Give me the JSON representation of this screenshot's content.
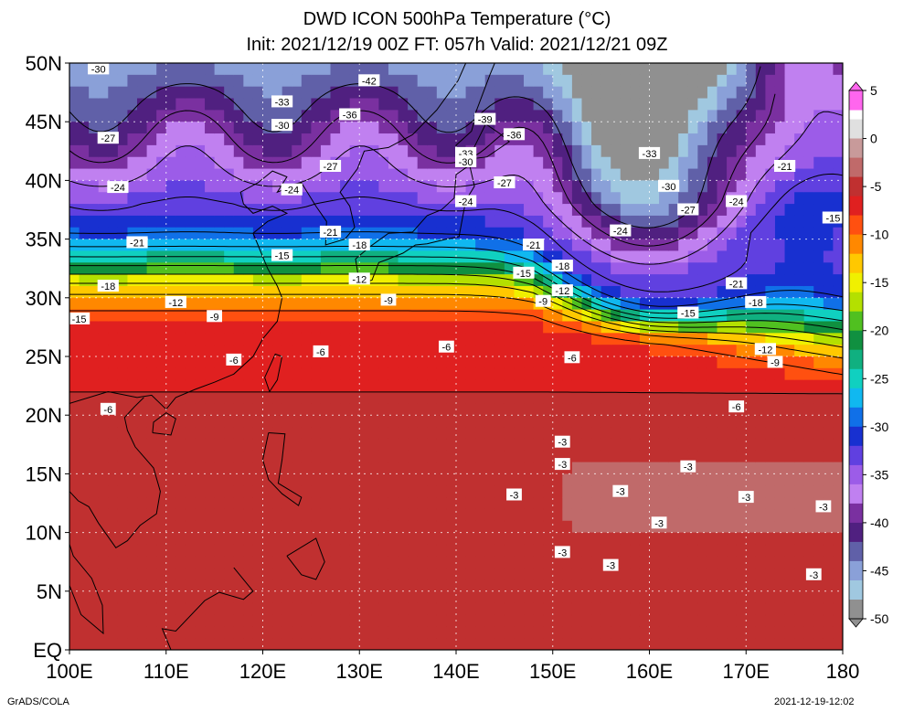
{
  "title": {
    "line1": "DWD ICON 500hPa Temperature (°C)",
    "line2": "Init: 2021/12/19 00Z  FT: 057h  Valid: 2021/12/21 09Z"
  },
  "axes": {
    "lat_labels": [
      "50N",
      "45N",
      "40N",
      "35N",
      "30N",
      "25N",
      "20N",
      "15N",
      "10N",
      "5N",
      "EQ"
    ],
    "lat_values": [
      50,
      45,
      40,
      35,
      30,
      25,
      20,
      15,
      10,
      5,
      0
    ],
    "lon_labels": [
      "100E",
      "110E",
      "120E",
      "130E",
      "140E",
      "150E",
      "160E",
      "170E",
      "180"
    ],
    "lon_values": [
      100,
      110,
      120,
      130,
      140,
      150,
      160,
      170,
      180
    ]
  },
  "colorbar": {
    "labels": [
      "5",
      "0",
      "-5",
      "-10",
      "-15",
      "-20",
      "-25",
      "-30",
      "-35",
      "-40",
      "-45",
      "-50"
    ],
    "label_values": [
      5,
      0,
      -5,
      -10,
      -15,
      -20,
      -25,
      -30,
      -35,
      -40,
      -45,
      -50
    ],
    "bins": [
      {
        "t": 4,
        "c": "#ff66ee"
      },
      {
        "t": 1,
        "c": "#e0e0e0"
      },
      {
        "t": -1,
        "c": "#c89a9a"
      },
      {
        "t": -3,
        "c": "#c06a6a"
      },
      {
        "t": -5,
        "c": "#c03030"
      },
      {
        "t": -7,
        "c": "#e02020"
      },
      {
        "t": -9,
        "c": "#ff5010"
      },
      {
        "t": -11,
        "c": "#ff8800"
      },
      {
        "t": -13,
        "c": "#ffc800"
      },
      {
        "t": -15,
        "c": "#f0f000"
      },
      {
        "t": -17,
        "c": "#b4e000"
      },
      {
        "t": -19,
        "c": "#50c020"
      },
      {
        "t": -21,
        "c": "#109040"
      },
      {
        "t": -23,
        "c": "#10b080"
      },
      {
        "t": -25,
        "c": "#10d0c0"
      },
      {
        "t": -27,
        "c": "#10b8f0"
      },
      {
        "t": -29,
        "c": "#1070e8"
      },
      {
        "t": -31,
        "c": "#1830d0"
      },
      {
        "t": -33,
        "c": "#6040e0"
      },
      {
        "t": -35,
        "c": "#9c5ce8"
      },
      {
        "t": -37,
        "c": "#c080f0"
      },
      {
        "t": -39,
        "c": "#7a30a0"
      },
      {
        "t": -41,
        "c": "#502080"
      },
      {
        "t": -43,
        "c": "#6060a8"
      },
      {
        "t": -45,
        "c": "#8aa0d8"
      },
      {
        "t": -47,
        "c": "#a0c8e0"
      },
      {
        "t": -49,
        "c": "#909090"
      }
    ]
  },
  "contour_labels": [
    {
      "text": "-42",
      "lon": 131,
      "lat": 48.5
    },
    {
      "text": "-30",
      "lon": 103,
      "lat": 49.5
    },
    {
      "text": "-33",
      "lon": 122,
      "lat": 46.7
    },
    {
      "text": "-36",
      "lon": 129,
      "lat": 45.6
    },
    {
      "text": "-30",
      "lon": 122,
      "lat": 44.7
    },
    {
      "text": "-39",
      "lon": 143,
      "lat": 45.2
    },
    {
      "text": "-36",
      "lon": 146,
      "lat": 43.9
    },
    {
      "text": "-27",
      "lon": 104,
      "lat": 43.6
    },
    {
      "text": "-33",
      "lon": 141,
      "lat": 42.3
    },
    {
      "text": "-30",
      "lon": 141,
      "lat": 41.6
    },
    {
      "text": "-33",
      "lon": 160,
      "lat": 42.3
    },
    {
      "text": "-27",
      "lon": 127,
      "lat": 41.2
    },
    {
      "text": "-21",
      "lon": 174,
      "lat": 41.2
    },
    {
      "text": "-24",
      "lon": 105,
      "lat": 39.4
    },
    {
      "text": "-24",
      "lon": 123,
      "lat": 39.2
    },
    {
      "text": "-27",
      "lon": 145,
      "lat": 39.8
    },
    {
      "text": "-30",
      "lon": 162,
      "lat": 39.5
    },
    {
      "text": "-24",
      "lon": 169,
      "lat": 38.2
    },
    {
      "text": "-24",
      "lon": 141,
      "lat": 38.2
    },
    {
      "text": "-27",
      "lon": 164,
      "lat": 37.5
    },
    {
      "text": "-15",
      "lon": 179,
      "lat": 36.8
    },
    {
      "text": "-21",
      "lon": 127,
      "lat": 35.6
    },
    {
      "text": "-18",
      "lon": 130,
      "lat": 34.5
    },
    {
      "text": "-21",
      "lon": 107,
      "lat": 34.7
    },
    {
      "text": "-21",
      "lon": 148,
      "lat": 34.5
    },
    {
      "text": "-24",
      "lon": 157,
      "lat": 35.7
    },
    {
      "text": "-15",
      "lon": 122,
      "lat": 33.6
    },
    {
      "text": "-18",
      "lon": 151,
      "lat": 32.7
    },
    {
      "text": "-15",
      "lon": 147,
      "lat": 32.1
    },
    {
      "text": "-12",
      "lon": 130,
      "lat": 31.6
    },
    {
      "text": "-18",
      "lon": 104,
      "lat": 31.0
    },
    {
      "text": "-21",
      "lon": 169,
      "lat": 31.2
    },
    {
      "text": "-12",
      "lon": 151,
      "lat": 30.6
    },
    {
      "text": "-9",
      "lon": 133,
      "lat": 29.8
    },
    {
      "text": "-9",
      "lon": 149,
      "lat": 29.7
    },
    {
      "text": "-18",
      "lon": 171,
      "lat": 29.6
    },
    {
      "text": "-12",
      "lon": 111,
      "lat": 29.6
    },
    {
      "text": "-9",
      "lon": 115,
      "lat": 28.4
    },
    {
      "text": "-15",
      "lon": 101,
      "lat": 28.2
    },
    {
      "text": "-15",
      "lon": 164,
      "lat": 28.7
    },
    {
      "text": "-12",
      "lon": 172,
      "lat": 25.6
    },
    {
      "text": "-6",
      "lon": 126,
      "lat": 25.4
    },
    {
      "text": "-6",
      "lon": 139,
      "lat": 25.8
    },
    {
      "text": "-6",
      "lon": 117,
      "lat": 24.7
    },
    {
      "text": "-6",
      "lon": 152,
      "lat": 24.9
    },
    {
      "text": "-9",
      "lon": 173,
      "lat": 24.5
    },
    {
      "text": "-6",
      "lon": 104,
      "lat": 20.5
    },
    {
      "text": "-6",
      "lon": 169,
      "lat": 20.7
    },
    {
      "text": "-3",
      "lon": 151,
      "lat": 17.7
    },
    {
      "text": "-3",
      "lon": 151,
      "lat": 15.8
    },
    {
      "text": "-3",
      "lon": 164,
      "lat": 15.6
    },
    {
      "text": "-3",
      "lon": 146,
      "lat": 13.2
    },
    {
      "text": "-3",
      "lon": 157,
      "lat": 13.5
    },
    {
      "text": "-3",
      "lon": 170,
      "lat": 13.0
    },
    {
      "text": "-3",
      "lon": 178,
      "lat": 12.2
    },
    {
      "text": "-3",
      "lon": 161,
      "lat": 10.8
    },
    {
      "text": "-3",
      "lon": 151,
      "lat": 8.3
    },
    {
      "text": "-3",
      "lon": 156,
      "lat": 7.2
    },
    {
      "text": "-3",
      "lon": 177,
      "lat": 6.4
    }
  ],
  "footer": {
    "credit": "GrADS/COLA",
    "timestamp": "2021-12-19-12:02"
  }
}
